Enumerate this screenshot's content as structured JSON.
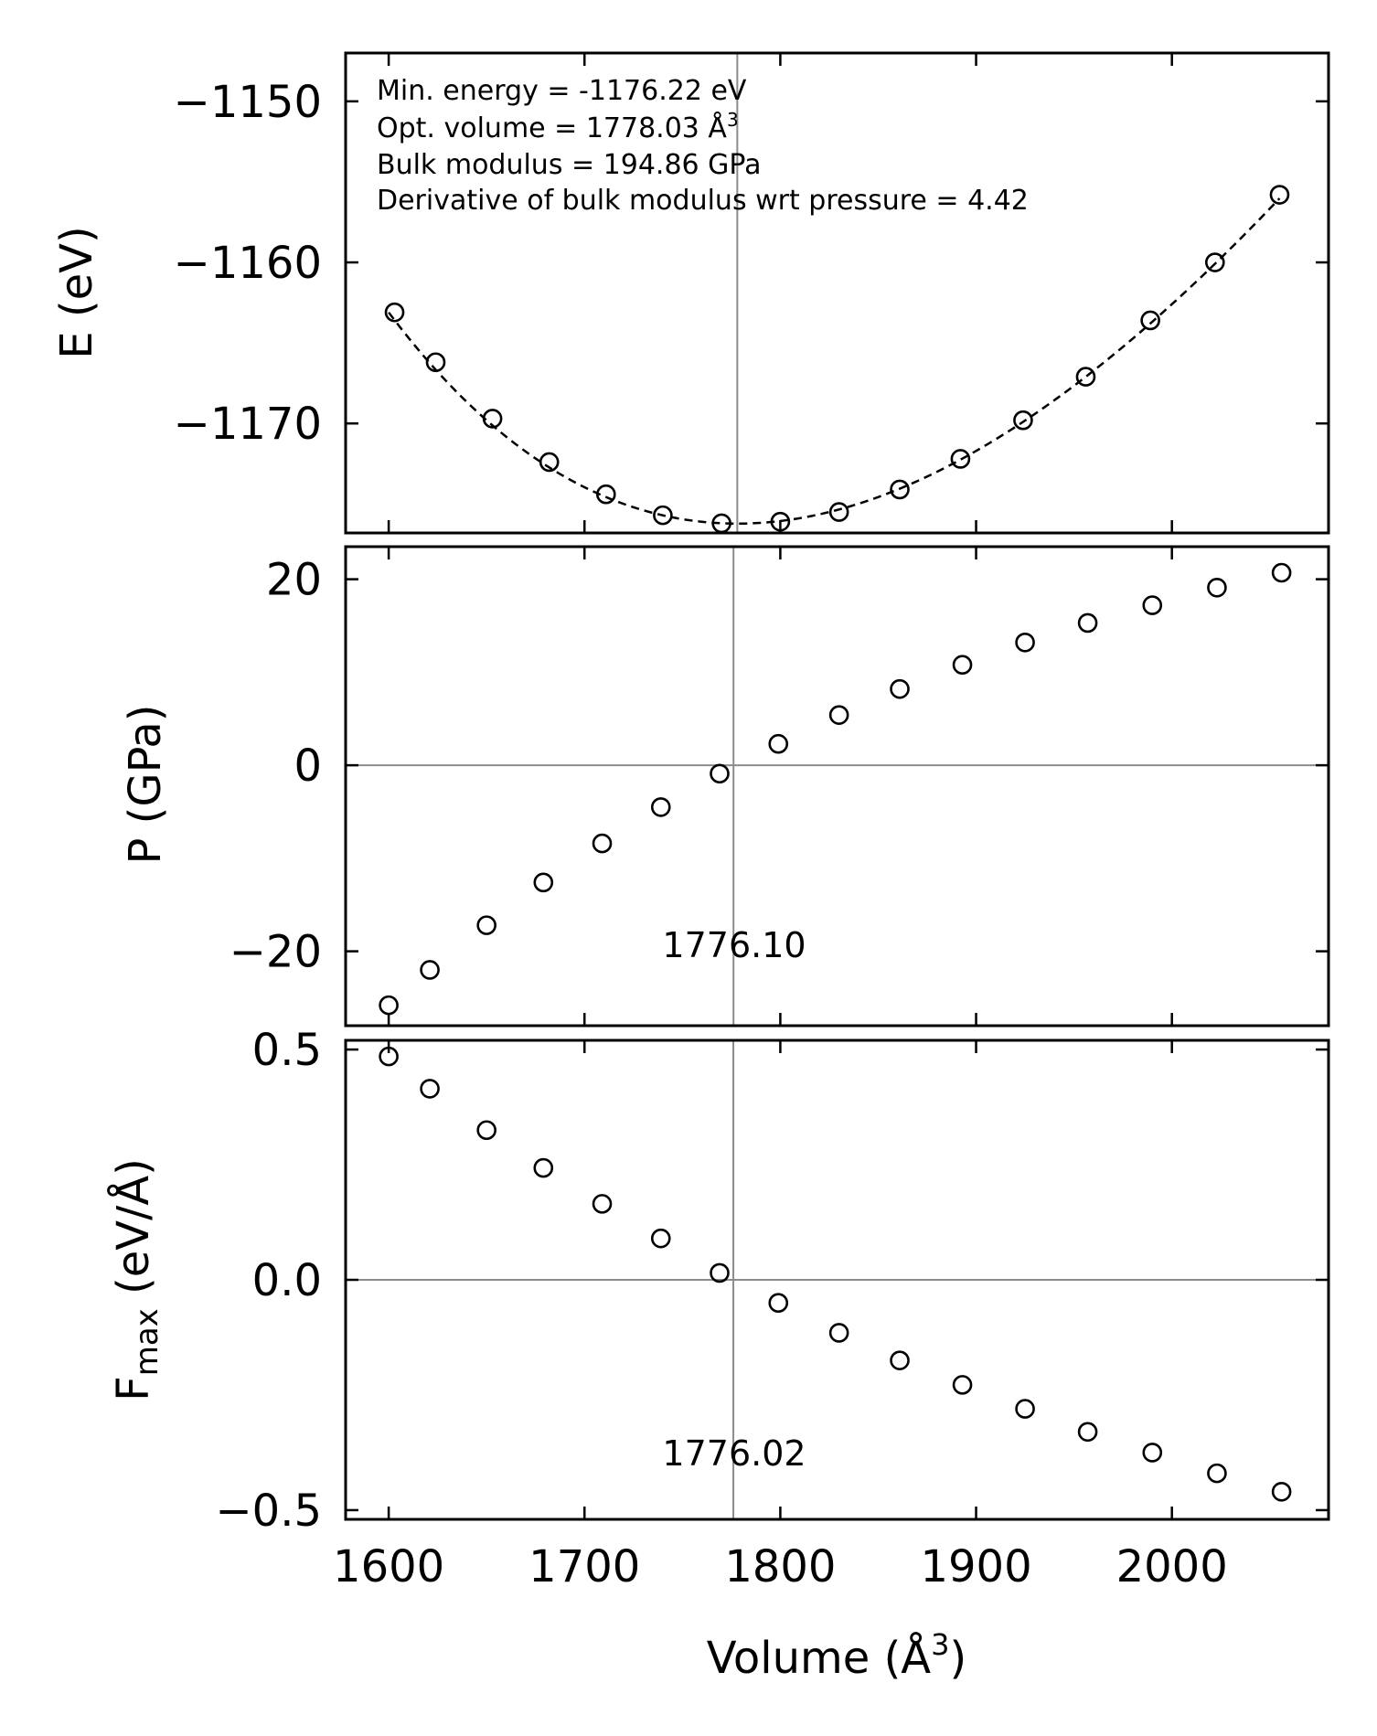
{
  "chart_data": [
    {
      "type": "scatter",
      "panel": "energy",
      "ylabel": "E (eV)",
      "xlim": [
        1578,
        2080
      ],
      "ylim": [
        -1176.8,
        -1147
      ],
      "yticks": [
        -1150,
        -1160,
        -1170
      ],
      "ytick_labels": [
        "−1150",
        "−1160",
        "−1170"
      ],
      "x": [
        1603,
        1624,
        1653,
        1682,
        1711,
        1740,
        1770,
        1800,
        1830,
        1861,
        1892,
        1924,
        1956,
        1989,
        2022,
        2055
      ],
      "y": [
        -1163.1,
        -1166.2,
        -1169.7,
        -1172.4,
        -1174.4,
        -1175.7,
        -1176.2,
        -1176.1,
        -1175.5,
        -1174.1,
        -1172.2,
        -1169.8,
        -1167.1,
        -1163.6,
        -1160.0,
        -1155.8
      ],
      "fit": {
        "style": "dashed",
        "min_energy": -1176.22,
        "opt_volume": 1778.03,
        "bulk_modulus_gpa": 194.86,
        "bulk_modulus_derivative": 4.42,
        "x_range": [
          1600,
          2055
        ]
      },
      "annotations": [
        "Min. energy = -1176.22 eV",
        "Opt. volume = 1778.03 Å",
        "Bulk modulus = 194.86 GPa",
        "Derivative of bulk modulus wrt pressure = 4.42"
      ],
      "vline": 1778.03
    },
    {
      "type": "scatter",
      "panel": "pressure",
      "ylabel": "P (GPa)",
      "xlim": [
        1578,
        2080
      ],
      "ylim": [
        -28,
        23.5
      ],
      "yticks": [
        20,
        0,
        -20
      ],
      "ytick_labels": [
        "20",
        "0",
        "−20"
      ],
      "x": [
        1600,
        1621,
        1650,
        1679,
        1709,
        1739,
        1769,
        1799,
        1830,
        1861,
        1893,
        1925,
        1957,
        1990,
        2023,
        2056
      ],
      "y": [
        -25.8,
        -22.0,
        -17.2,
        -12.6,
        -8.4,
        -4.5,
        -0.9,
        2.3,
        5.4,
        8.2,
        10.8,
        13.2,
        15.3,
        17.2,
        19.1,
        20.7
      ],
      "hline": 0,
      "vline": 1776.1,
      "annotation": "1776.10"
    },
    {
      "type": "scatter",
      "panel": "force",
      "ylabel_main": "F",
      "ylabel_sub": "max",
      "ylabel_rest": " (eV/Å)",
      "xlabel": "Volume (Å",
      "xlabel_close": ")",
      "superscript": "3",
      "xlim": [
        1578,
        2080
      ],
      "ylim": [
        -0.52,
        0.52
      ],
      "yticks": [
        0.5,
        0.0,
        -0.5
      ],
      "ytick_labels": [
        "0.5",
        "0.0",
        "−0.5"
      ],
      "xticks": [
        1600,
        1700,
        1800,
        1900,
        2000
      ],
      "xtick_labels": [
        "1600",
        "1700",
        "1800",
        "1900",
        "2000"
      ],
      "x": [
        1600,
        1621,
        1650,
        1679,
        1709,
        1739,
        1769,
        1799,
        1830,
        1861,
        1893,
        1925,
        1957,
        1990,
        2023,
        2056
      ],
      "y": [
        0.485,
        0.415,
        0.325,
        0.243,
        0.165,
        0.09,
        0.015,
        -0.05,
        -0.115,
        -0.175,
        -0.228,
        -0.28,
        -0.33,
        -0.375,
        -0.42,
        -0.46
      ],
      "hline": 0,
      "vline": 1776.02,
      "annotation": "1776.02"
    }
  ]
}
